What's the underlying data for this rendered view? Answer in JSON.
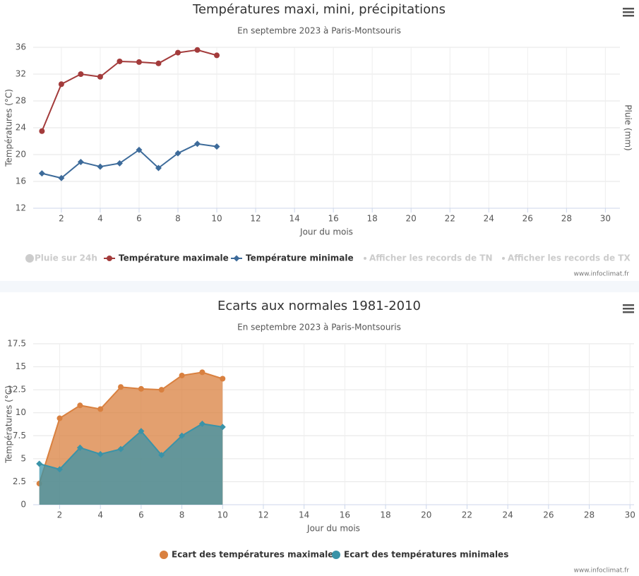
{
  "chart_data": [
    {
      "type": "line",
      "title": "Températures maxi, mini, précipitations",
      "subtitle": "En septembre 2023 à Paris-Montsouris",
      "y_label": "Températures (°C)",
      "y2_label": "Pluie (mm)",
      "x_label": "Jour du mois",
      "x": [
        1,
        2,
        3,
        4,
        5,
        6,
        7,
        8,
        9,
        10
      ],
      "series": [
        {
          "name": "Température maximale",
          "color": "#a33b3b",
          "marker": "circle",
          "values": [
            23.5,
            30.5,
            32.0,
            31.6,
            33.9,
            33.8,
            33.6,
            35.2,
            35.6,
            34.8
          ]
        },
        {
          "name": "Température minimale",
          "color": "#3d6b9a",
          "marker": "diamond",
          "values": [
            17.2,
            16.5,
            18.9,
            18.2,
            18.7,
            20.7,
            18.0,
            20.2,
            21.6,
            21.2
          ]
        }
      ],
      "hidden_legend": [
        "Pluie sur 24h",
        "Afficher les records de TN",
        "Afficher les records de TX"
      ],
      "xlim": [
        0.55,
        30.75
      ],
      "xticks": [
        2,
        4,
        6,
        8,
        10,
        12,
        14,
        16,
        18,
        20,
        22,
        24,
        26,
        28,
        30
      ],
      "ylim": [
        12,
        36
      ],
      "yticks": [
        12,
        16,
        20,
        24,
        28,
        32,
        36
      ],
      "grid": true,
      "credit": "www.infoclimat.fr"
    },
    {
      "type": "area",
      "title": "Ecarts aux normales 1981-2010",
      "subtitle": "En septembre 2023 à Paris-Montsouris",
      "y_label": "Températures (°C)",
      "x_label": "Jour du mois",
      "x": [
        1,
        2,
        3,
        4,
        5,
        6,
        7,
        8,
        9,
        10
      ],
      "series": [
        {
          "name": "Ecart des températures maximales",
          "color": "#d9803f",
          "marker": "circle",
          "values": [
            2.3,
            9.4,
            10.8,
            10.4,
            12.8,
            12.6,
            12.5,
            14.05,
            14.4,
            13.7
          ]
        },
        {
          "name": "Ecart des températures minimales",
          "color": "#3a93a8",
          "marker": "diamond",
          "values": [
            4.45,
            3.85,
            6.2,
            5.5,
            6.05,
            8.0,
            5.4,
            7.5,
            8.8,
            8.45
          ]
        }
      ],
      "xlim": [
        0.7,
        30.2
      ],
      "xticks": [
        2,
        4,
        6,
        8,
        10,
        12,
        14,
        16,
        18,
        20,
        22,
        24,
        26,
        28,
        30
      ],
      "ylim": [
        0,
        17.5
      ],
      "yticks": [
        0,
        2.5,
        5,
        7.5,
        10,
        12.5,
        15,
        17.5
      ],
      "grid": true,
      "credit": "www.infoclimat.fr"
    }
  ]
}
